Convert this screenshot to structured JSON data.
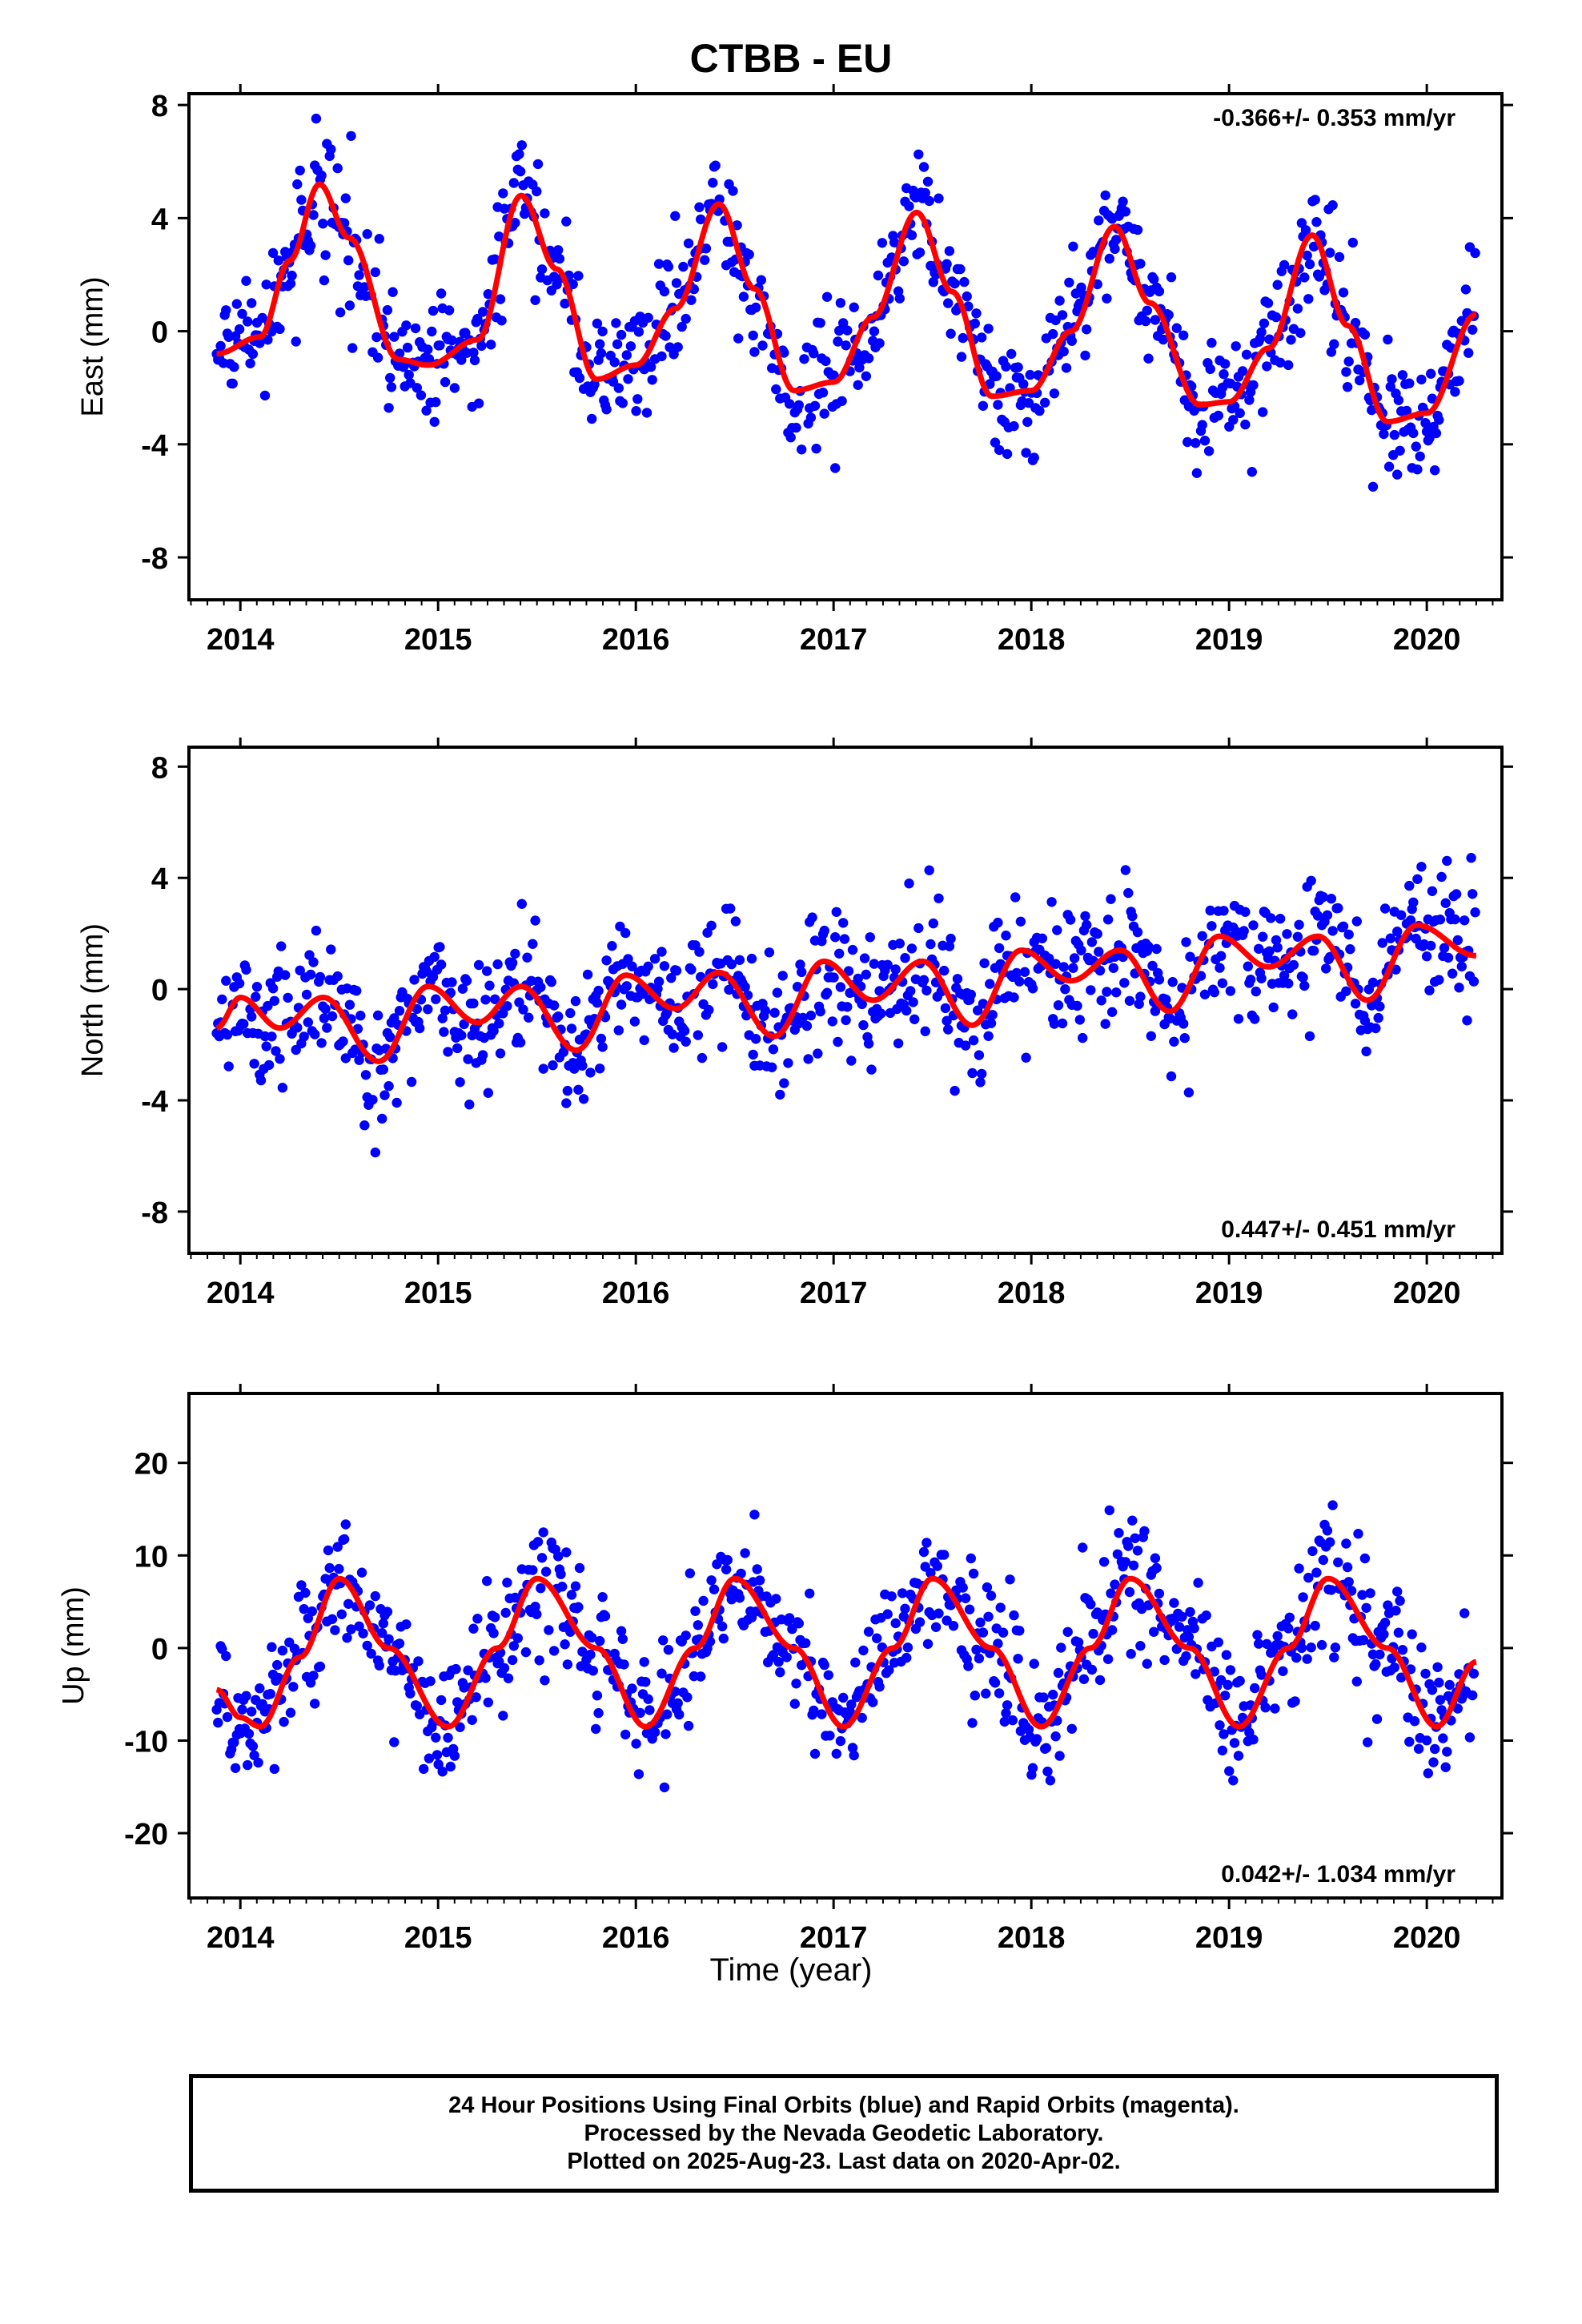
{
  "title": "CTBB - EU",
  "xlabel": "Time (year)",
  "footer": [
    "24 Hour Positions Using Final Orbits (blue) and Rapid Orbits (magenta).",
    "Processed by the Nevada Geodetic Laboratory.",
    "Plotted on 2025-Aug-23. Last data on 2020-Apr-02."
  ],
  "colors": {
    "data": "#0000ff",
    "model": "#ff0000",
    "frame": "#000000"
  },
  "chart_data": [
    {
      "type": "scatter",
      "component": "east",
      "ylabel": "East (mm)",
      "rate_text": "-0.366+/- 0.353 mm/yr",
      "rate_position": "top-right",
      "xlim": [
        2013.74,
        2020.38
      ],
      "ylim": [
        -9.5,
        8.4
      ],
      "xticks": [
        2014,
        2015,
        2016,
        2017,
        2018,
        2019,
        2020
      ],
      "yticks": [
        -8,
        -4,
        0,
        4,
        8
      ],
      "series": [
        {
          "name": "Final Orbits (blue)",
          "kind": "points",
          "x_range": [
            2013.88,
            2020.25
          ],
          "approx_daily_scatter_mm": 1.1
        },
        {
          "name": "model",
          "kind": "line",
          "x": [
            2013.88,
            2014.1,
            2014.25,
            2014.4,
            2014.55,
            2014.8,
            2014.95,
            2015.2,
            2015.42,
            2015.6,
            2015.8,
            2016.0,
            2016.2,
            2016.42,
            2016.6,
            2016.8,
            2017.0,
            2017.2,
            2017.42,
            2017.6,
            2017.8,
            2018.0,
            2018.2,
            2018.42,
            2018.6,
            2018.85,
            2019.0,
            2019.2,
            2019.42,
            2019.6,
            2019.8,
            2020.0,
            2020.25
          ],
          "y": [
            -0.8,
            -0.2,
            2.5,
            5.2,
            3.3,
            -1.0,
            -1.2,
            -0.3,
            4.8,
            2.2,
            -1.7,
            -1.2,
            0.8,
            4.5,
            1.5,
            -2.1,
            -1.8,
            0.5,
            4.2,
            1.4,
            -2.3,
            -2.1,
            0.0,
            3.7,
            1.0,
            -2.6,
            -2.5,
            -0.6,
            3.4,
            0.2,
            -3.2,
            -2.9,
            0.6
          ]
        }
      ]
    },
    {
      "type": "scatter",
      "component": "north",
      "ylabel": "North (mm)",
      "rate_text": "0.447+/- 0.451 mm/yr",
      "rate_position": "bottom-right",
      "xlim": [
        2013.74,
        2020.38
      ],
      "ylim": [
        -9.5,
        8.7
      ],
      "xticks": [
        2014,
        2015,
        2016,
        2017,
        2018,
        2019,
        2020
      ],
      "yticks": [
        -8,
        -4,
        0,
        4,
        8
      ],
      "series": [
        {
          "name": "Final Orbits (blue)",
          "kind": "points",
          "x_range": [
            2013.88,
            2020.25
          ],
          "approx_daily_scatter_mm": 1.2
        },
        {
          "name": "model",
          "kind": "line",
          "x": [
            2013.88,
            2014.0,
            2014.2,
            2014.42,
            2014.7,
            2014.95,
            2015.2,
            2015.42,
            2015.7,
            2015.95,
            2016.2,
            2016.42,
            2016.7,
            2016.95,
            2017.2,
            2017.45,
            2017.7,
            2017.95,
            2018.2,
            2018.45,
            2018.7,
            2018.95,
            2019.2,
            2019.45,
            2019.7,
            2019.95,
            2020.25
          ],
          "y": [
            -1.4,
            -0.3,
            -1.4,
            -0.3,
            -2.6,
            0.1,
            -1.2,
            0.1,
            -2.2,
            0.5,
            -0.7,
            0.6,
            -1.7,
            1.0,
            -0.4,
            1.0,
            -1.3,
            1.4,
            0.3,
            1.4,
            -0.8,
            1.9,
            0.8,
            1.9,
            -0.4,
            2.3,
            1.2
          ]
        }
      ]
    },
    {
      "type": "scatter",
      "component": "up",
      "ylabel": "Up (mm)",
      "rate_text": "0.042+/- 1.034 mm/yr",
      "rate_position": "bottom-right",
      "xlim": [
        2013.74,
        2020.38
      ],
      "ylim": [
        -27,
        27.5
      ],
      "xticks": [
        2014,
        2015,
        2016,
        2017,
        2018,
        2019,
        2020
      ],
      "yticks": [
        -20,
        -10,
        0,
        10,
        20
      ],
      "series": [
        {
          "name": "Final Orbits (blue)",
          "kind": "points",
          "x_range": [
            2013.88,
            2020.25
          ],
          "approx_daily_scatter_mm": 3.5
        },
        {
          "name": "model",
          "kind": "line",
          "x": [
            2013.88,
            2014.0,
            2014.1,
            2014.3,
            2014.5,
            2014.75,
            2015.05,
            2015.3,
            2015.5,
            2015.8,
            2016.05,
            2016.3,
            2016.5,
            2016.8,
            2017.05,
            2017.3,
            2017.5,
            2017.8,
            2018.05,
            2018.3,
            2018.5,
            2018.8,
            2019.05,
            2019.3,
            2019.5,
            2019.8,
            2020.05,
            2020.25
          ],
          "y": [
            -4.5,
            -7.5,
            -8.5,
            -1.0,
            7.5,
            0.0,
            -8.5,
            0.0,
            7.5,
            0.0,
            -8.5,
            0.0,
            7.5,
            0.0,
            -8.5,
            0.0,
            7.5,
            0.0,
            -8.5,
            0.0,
            7.5,
            0.0,
            -8.5,
            0.0,
            7.5,
            0.0,
            -8.5,
            -1.5
          ]
        }
      ]
    }
  ]
}
